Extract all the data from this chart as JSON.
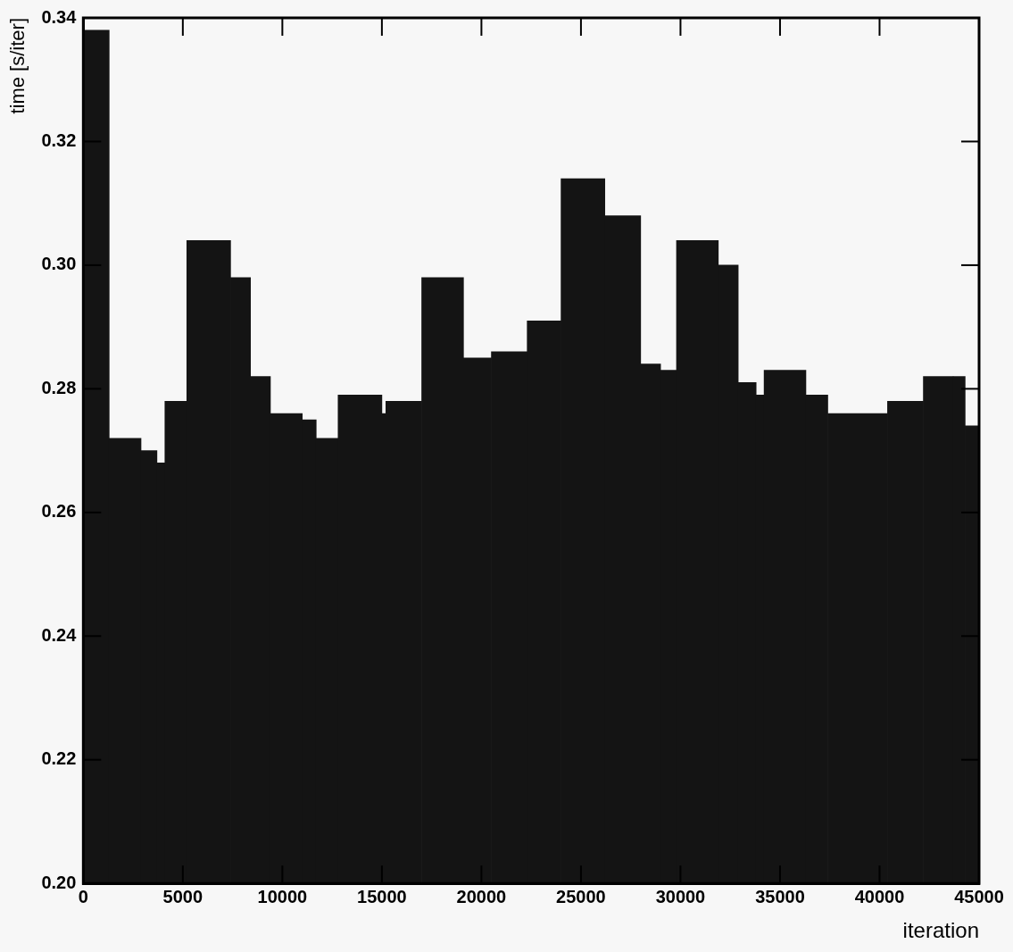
{
  "chart_data": {
    "type": "histogram",
    "xlabel": "iteration",
    "ylabel": "time [s/iter]",
    "color": "#141414",
    "bins": [
      0,
      1300,
      2900,
      3700,
      4100,
      5200,
      7400,
      8400,
      9400,
      11000,
      11700,
      12800,
      15000,
      15200,
      17000,
      19100,
      20500,
      22300,
      24000,
      26200,
      28000,
      29000,
      29800,
      31900,
      32900,
      33800,
      34200,
      36300,
      37400,
      40400,
      42200,
      43700,
      44300,
      45000
    ],
    "values": [
      0.338,
      0.272,
      0.27,
      0.268,
      0.278,
      0.304,
      0.298,
      0.282,
      0.276,
      0.275,
      0.272,
      0.279,
      0.276,
      0.278,
      0.298,
      0.285,
      0.286,
      0.291,
      0.314,
      0.308,
      0.284,
      0.283,
      0.304,
      0.3,
      0.281,
      0.279,
      0.283,
      0.279,
      0.276,
      0.278,
      0.282,
      0.282,
      0.274
    ],
    "xlim": [
      0,
      45000
    ],
    "xticks": [
      0,
      5000,
      10000,
      15000,
      20000,
      25000,
      30000,
      35000,
      40000,
      45000
    ],
    "ylim": [
      0.2,
      0.34
    ],
    "yticks": [
      {
        "value": 0.2,
        "label": "0.20"
      },
      0.22,
      0.24,
      0.26,
      0.28,
      {
        "value": 0.3,
        "label": "0.30"
      },
      0.32,
      0.34
    ],
    "grid": false,
    "legend": false
  }
}
